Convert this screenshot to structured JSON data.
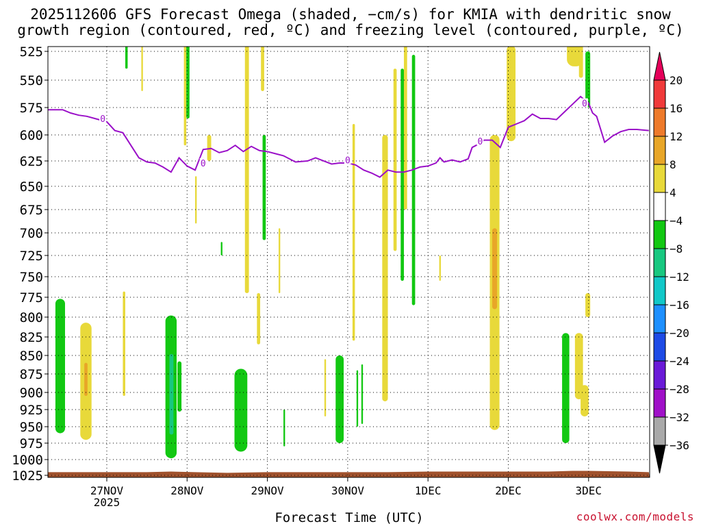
{
  "chart_data": {
    "type": "heatmap",
    "title_line1": "2025112606 GFS Forecast Omega (shaded, −cm/s) for KMIA with dendritic snow",
    "title_line2": "growth region (contoured, red, ºC) and freezing level (contoured, purple, ºC)",
    "xlabel": "Forecast Time (UTC)",
    "credit": "coolwx.com/models",
    "y_axis": {
      "unit": "hPa",
      "ticks": [
        525,
        550,
        575,
        600,
        625,
        650,
        675,
        700,
        725,
        750,
        775,
        800,
        825,
        850,
        875,
        900,
        925,
        950,
        975,
        1000,
        1025
      ],
      "range": [
        525,
        1025
      ],
      "scale": "log-pressure"
    },
    "x_axis": {
      "range_days": [
        "2025-11-26T06",
        "2025-12-03T18"
      ],
      "ticks": [
        {
          "day": 1,
          "label": "27NOV",
          "sub": "2025"
        },
        {
          "day": 2,
          "label": "28NOV",
          "sub": ""
        },
        {
          "day": 3,
          "label": "29NOV",
          "sub": ""
        },
        {
          "day": 4,
          "label": "30NOV",
          "sub": ""
        },
        {
          "day": 5,
          "label": "1DEC",
          "sub": ""
        },
        {
          "day": 6,
          "label": "2DEC",
          "sub": ""
        },
        {
          "day": 7,
          "label": "3DEC",
          "sub": ""
        }
      ],
      "day_start": 0.25,
      "day_end": 7.75
    },
    "grid": true,
    "colorbar": {
      "labels": [
        "20",
        "16",
        "12",
        "8",
        "4",
        "−4",
        "−8",
        "−12",
        "−16",
        "−20",
        "−24",
        "−28",
        "−32",
        "−36"
      ],
      "colors": [
        "#e5005a",
        "#f03a3a",
        "#ee7a2a",
        "#e8a628",
        "#e8d93a",
        "#ffffff",
        "#12c812",
        "#18c880",
        "#12c8c8",
        "#1e90ff",
        "#1e4be6",
        "#6a1ad8",
        "#a010c8",
        "#a9a9a9",
        "#000000"
      ]
    },
    "freezing_level": {
      "label": "0",
      "color": "#9a0fc8",
      "points": [
        [
          0.25,
          577
        ],
        [
          0.45,
          577
        ],
        [
          0.55,
          580
        ],
        [
          0.65,
          582
        ],
        [
          0.75,
          583
        ],
        [
          0.85,
          585
        ],
        [
          1.0,
          588
        ],
        [
          1.1,
          596
        ],
        [
          1.2,
          598
        ],
        [
          1.3,
          610
        ],
        [
          1.4,
          622
        ],
        [
          1.5,
          626
        ],
        [
          1.6,
          627
        ],
        [
          1.7,
          631
        ],
        [
          1.8,
          636
        ],
        [
          1.9,
          622
        ],
        [
          2.0,
          630
        ],
        [
          2.1,
          634
        ],
        [
          2.2,
          614
        ],
        [
          2.3,
          613
        ],
        [
          2.4,
          617
        ],
        [
          2.5,
          615
        ],
        [
          2.6,
          610
        ],
        [
          2.7,
          616
        ],
        [
          2.8,
          611
        ],
        [
          2.9,
          615
        ],
        [
          3.0,
          616
        ],
        [
          3.1,
          618
        ],
        [
          3.2,
          620
        ],
        [
          3.35,
          626
        ],
        [
          3.5,
          625
        ],
        [
          3.6,
          622
        ],
        [
          3.8,
          628
        ],
        [
          3.9,
          627
        ],
        [
          4.0,
          627
        ],
        [
          4.1,
          629
        ],
        [
          4.2,
          634
        ],
        [
          4.3,
          637
        ],
        [
          4.4,
          641
        ],
        [
          4.5,
          634
        ],
        [
          4.6,
          636
        ],
        [
          4.7,
          636
        ],
        [
          4.8,
          634
        ],
        [
          4.9,
          631
        ],
        [
          5.0,
          630
        ],
        [
          5.1,
          627
        ],
        [
          5.15,
          622
        ],
        [
          5.2,
          626
        ],
        [
          5.3,
          624
        ],
        [
          5.4,
          626
        ],
        [
          5.5,
          623
        ],
        [
          5.55,
          612
        ],
        [
          5.6,
          610
        ],
        [
          5.7,
          605
        ],
        [
          5.8,
          605
        ],
        [
          5.9,
          612
        ],
        [
          6.0,
          593
        ],
        [
          6.1,
          590
        ],
        [
          6.2,
          587
        ],
        [
          6.3,
          581
        ],
        [
          6.4,
          585
        ],
        [
          6.5,
          585
        ],
        [
          6.6,
          586
        ],
        [
          6.7,
          579
        ],
        [
          6.8,
          572
        ],
        [
          6.9,
          565
        ],
        [
          7.0,
          571
        ],
        [
          7.05,
          580
        ],
        [
          7.1,
          583
        ],
        [
          7.2,
          607
        ],
        [
          7.3,
          601
        ],
        [
          7.4,
          597
        ],
        [
          7.5,
          595
        ],
        [
          7.6,
          595
        ],
        [
          7.75,
          596
        ]
      ],
      "label_positions": [
        [
          0.95,
          585
        ],
        [
          2.2,
          627
        ],
        [
          4.0,
          624
        ],
        [
          5.65,
          606
        ],
        [
          6.95,
          571
        ]
      ]
    },
    "surface": {
      "color": "#a0522d",
      "pressures": [
        [
          0.25,
          1020
        ],
        [
          1.0,
          1020
        ],
        [
          1.5,
          1020
        ],
        [
          1.8,
          1019
        ],
        [
          2.1,
          1020
        ],
        [
          2.5,
          1021
        ],
        [
          3.0,
          1020
        ],
        [
          3.5,
          1020
        ],
        [
          3.8,
          1020
        ],
        [
          4.0,
          1020
        ],
        [
          4.5,
          1020
        ],
        [
          5.0,
          1019
        ],
        [
          5.5,
          1019
        ],
        [
          6.0,
          1019
        ],
        [
          6.5,
          1019
        ],
        [
          6.8,
          1018
        ],
        [
          7.0,
          1018
        ],
        [
          7.5,
          1019
        ],
        [
          7.75,
          1020
        ]
      ]
    },
    "omega_cells": [
      {
        "t0": 0.36,
        "t1": 0.48,
        "p0": 777,
        "p1": 960,
        "color": "#12c812"
      },
      {
        "t0": 0.67,
        "t1": 0.81,
        "p0": 807,
        "p1": 970,
        "color": "#e8d93a"
      },
      {
        "t0": 0.72,
        "t1": 0.76,
        "p0": 860,
        "p1": 905,
        "color": "#e8a628"
      },
      {
        "t0": 1.2,
        "t1": 1.23,
        "p0": 768,
        "p1": 905,
        "color": "#e8d93a"
      },
      {
        "t0": 1.23,
        "t1": 1.26,
        "p0": 516,
        "p1": 540,
        "color": "#12c812"
      },
      {
        "t0": 1.43,
        "t1": 1.45,
        "p0": 520,
        "p1": 560,
        "color": "#e8d93a"
      },
      {
        "t0": 1.73,
        "t1": 1.87,
        "p0": 798,
        "p1": 998,
        "color": "#12c812"
      },
      {
        "t0": 1.78,
        "t1": 1.83,
        "p0": 848,
        "p1": 962,
        "color": "#18c880"
      },
      {
        "t0": 1.88,
        "t1": 1.93,
        "p0": 858,
        "p1": 928,
        "color": "#12c812"
      },
      {
        "t0": 1.96,
        "t1": 1.99,
        "p0": 520,
        "p1": 610,
        "color": "#e8d93a"
      },
      {
        "t0": 1.99,
        "t1": 2.03,
        "p0": 520,
        "p1": 585,
        "color": "#12c812"
      },
      {
        "t0": 2.1,
        "t1": 2.12,
        "p0": 640,
        "p1": 690,
        "color": "#e8d93a"
      },
      {
        "t0": 2.25,
        "t1": 2.3,
        "p0": 600,
        "p1": 625,
        "color": "#e8d93a"
      },
      {
        "t0": 2.72,
        "t1": 2.77,
        "p0": 520,
        "p1": 770,
        "color": "#e8d93a"
      },
      {
        "t0": 2.92,
        "t1": 2.96,
        "p0": 520,
        "p1": 560,
        "color": "#e8d93a"
      },
      {
        "t0": 2.94,
        "t1": 2.98,
        "p0": 600,
        "p1": 708,
        "color": "#12c812"
      },
      {
        "t0": 2.87,
        "t1": 2.91,
        "p0": 770,
        "p1": 835,
        "color": "#e8d93a"
      },
      {
        "t0": 2.59,
        "t1": 2.75,
        "p0": 868,
        "p1": 988,
        "color": "#12c812"
      },
      {
        "t0": 3.14,
        "t1": 3.16,
        "p0": 695,
        "p1": 770,
        "color": "#e8d93a"
      },
      {
        "t0": 3.2,
        "t1": 3.22,
        "p0": 925,
        "p1": 980,
        "color": "#12c812"
      },
      {
        "t0": 3.71,
        "t1": 3.73,
        "p0": 855,
        "p1": 935,
        "color": "#e8d93a"
      },
      {
        "t0": 3.85,
        "t1": 3.95,
        "p0": 850,
        "p1": 975,
        "color": "#12c812"
      },
      {
        "t0": 4.06,
        "t1": 4.09,
        "p0": 590,
        "p1": 830,
        "color": "#e8d93a"
      },
      {
        "t0": 4.11,
        "t1": 4.13,
        "p0": 870,
        "p1": 950,
        "color": "#12c812"
      },
      {
        "t0": 4.17,
        "t1": 4.19,
        "p0": 862,
        "p1": 946,
        "color": "#12c812"
      },
      {
        "t0": 4.43,
        "t1": 4.5,
        "p0": 600,
        "p1": 913,
        "color": "#e8d93a"
      },
      {
        "t0": 4.57,
        "t1": 4.61,
        "p0": 540,
        "p1": 720,
        "color": "#e8d93a"
      },
      {
        "t0": 4.66,
        "t1": 4.7,
        "p0": 540,
        "p1": 755,
        "color": "#12c812"
      },
      {
        "t0": 4.7,
        "t1": 4.74,
        "p0": 520,
        "p1": 675,
        "color": "#e8d93a"
      },
      {
        "t0": 4.8,
        "t1": 4.84,
        "p0": 528,
        "p1": 785,
        "color": "#12c812"
      },
      {
        "t0": 5.14,
        "t1": 5.16,
        "p0": 725,
        "p1": 755,
        "color": "#e8d93a"
      },
      {
        "t0": 5.77,
        "t1": 5.89,
        "p0": 600,
        "p1": 955,
        "color": "#e8d93a"
      },
      {
        "t0": 5.8,
        "t1": 5.86,
        "p0": 695,
        "p1": 790,
        "color": "#e8a628"
      },
      {
        "t0": 5.98,
        "t1": 6.09,
        "p0": 520,
        "p1": 606,
        "color": "#e8d93a"
      },
      {
        "t0": 6.67,
        "t1": 6.76,
        "p0": 820,
        "p1": 975,
        "color": "#12c812"
      },
      {
        "t0": 6.83,
        "t1": 6.93,
        "p0": 820,
        "p1": 910,
        "color": "#e8d93a"
      },
      {
        "t0": 6.9,
        "t1": 7.0,
        "p0": 890,
        "p1": 935,
        "color": "#e8d93a"
      },
      {
        "t0": 6.96,
        "t1": 7.02,
        "p0": 770,
        "p1": 800,
        "color": "#e8d93a"
      },
      {
        "t0": 6.73,
        "t1": 6.93,
        "p0": 516,
        "p1": 538,
        "color": "#e8d93a"
      },
      {
        "t0": 6.88,
        "t1": 6.93,
        "p0": 530,
        "p1": 548,
        "color": "#e8d93a"
      },
      {
        "t0": 6.96,
        "t1": 7.02,
        "p0": 525,
        "p1": 575,
        "color": "#12c812"
      },
      {
        "t0": 2.42,
        "t1": 2.44,
        "p0": 710,
        "p1": 725,
        "color": "#12c812"
      }
    ]
  }
}
